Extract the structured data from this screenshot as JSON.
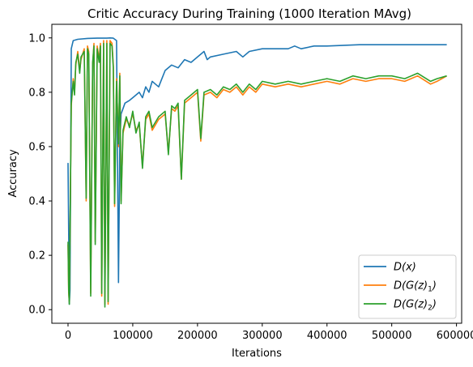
{
  "chart_data": {
    "type": "line",
    "title": "Critic Accuracy During Training (1000 Iteration MAvg)",
    "xlabel": "Iterations",
    "ylabel": "Accuracy",
    "xlim": [
      -25000,
      608000
    ],
    "ylim": [
      -0.05,
      1.05
    ],
    "x_ticks": [
      0,
      100000,
      200000,
      300000,
      400000,
      500000,
      600000
    ],
    "x_tick_labels": [
      "0",
      "100000",
      "200000",
      "300000",
      "400000",
      "500000",
      "600000"
    ],
    "y_ticks": [
      0.0,
      0.2,
      0.4,
      0.6,
      0.8,
      1.0
    ],
    "y_tick_labels": [
      "0.0",
      "0.2",
      "0.4",
      "0.6",
      "0.8",
      "1.0"
    ],
    "grid": false,
    "legend_position": "bottom-right",
    "colors": {
      "dx": "#1f77b4",
      "dgz1": "#ff7f0e",
      "dgz2": "#2ca02c"
    },
    "series": [
      {
        "name": "D(x)",
        "legend_parts": [
          "D(x)"
        ],
        "x": [
          0,
          2000,
          3000,
          5000,
          8000,
          15000,
          30000,
          45000,
          55000,
          60000,
          65000,
          70000,
          75000,
          78000,
          80000,
          82000,
          88000,
          95000,
          100000,
          110000,
          115000,
          120000,
          125000,
          130000,
          135000,
          140000,
          145000,
          150000,
          160000,
          170000,
          180000,
          190000,
          200000,
          210000,
          215000,
          220000,
          240000,
          260000,
          270000,
          280000,
          300000,
          320000,
          340000,
          350000,
          360000,
          380000,
          400000,
          450000,
          500000,
          550000,
          585000
        ],
        "y": [
          0.54,
          0.02,
          0.07,
          0.96,
          0.99,
          0.995,
          0.998,
          0.999,
          0.999,
          0.999,
          1.0,
          0.999,
          0.99,
          0.1,
          0.6,
          0.72,
          0.76,
          0.77,
          0.78,
          0.8,
          0.78,
          0.82,
          0.8,
          0.84,
          0.83,
          0.82,
          0.85,
          0.88,
          0.9,
          0.89,
          0.92,
          0.91,
          0.93,
          0.95,
          0.92,
          0.93,
          0.94,
          0.95,
          0.93,
          0.95,
          0.96,
          0.96,
          0.96,
          0.97,
          0.96,
          0.97,
          0.97,
          0.975,
          0.975,
          0.975,
          0.975
        ]
      },
      {
        "name": "D(G(z)1)",
        "legend_parts": [
          "D(G(z)",
          "1",
          ")"
        ],
        "x": [
          0,
          1000,
          2000,
          5000,
          8000,
          10000,
          12000,
          15000,
          18000,
          20000,
          25000,
          28000,
          30000,
          32000,
          35000,
          38000,
          40000,
          42000,
          45000,
          48000,
          50000,
          52000,
          55000,
          57000,
          60000,
          62000,
          65000,
          68000,
          70000,
          72000,
          75000,
          78000,
          80000,
          82000,
          85000,
          90000,
          95000,
          100000,
          105000,
          110000,
          115000,
          120000,
          125000,
          130000,
          140000,
          150000,
          155000,
          160000,
          165000,
          170000,
          175000,
          180000,
          190000,
          200000,
          205000,
          210000,
          220000,
          230000,
          240000,
          250000,
          260000,
          270000,
          280000,
          290000,
          300000,
          320000,
          340000,
          360000,
          380000,
          400000,
          420000,
          440000,
          460000,
          480000,
          500000,
          520000,
          540000,
          560000,
          570000,
          585000
        ],
        "y": [
          0.24,
          0.06,
          0.03,
          0.75,
          0.85,
          0.8,
          0.9,
          0.95,
          0.88,
          0.92,
          0.96,
          0.4,
          0.97,
          0.95,
          0.06,
          0.9,
          0.98,
          0.25,
          0.97,
          0.92,
          0.98,
          0.05,
          0.99,
          0.02,
          0.99,
          0.02,
          0.99,
          0.98,
          0.9,
          0.38,
          0.85,
          0.6,
          0.87,
          0.4,
          0.65,
          0.7,
          0.68,
          0.72,
          0.66,
          0.68,
          0.53,
          0.7,
          0.72,
          0.66,
          0.7,
          0.72,
          0.58,
          0.74,
          0.73,
          0.75,
          0.48,
          0.76,
          0.78,
          0.8,
          0.62,
          0.79,
          0.8,
          0.78,
          0.81,
          0.8,
          0.82,
          0.79,
          0.82,
          0.8,
          0.83,
          0.82,
          0.83,
          0.82,
          0.83,
          0.84,
          0.83,
          0.85,
          0.84,
          0.85,
          0.85,
          0.84,
          0.86,
          0.83,
          0.84,
          0.86
        ]
      },
      {
        "name": "D(G(z)2)",
        "legend_parts": [
          "D(G(z)",
          "2",
          ")"
        ],
        "x": [
          0,
          1000,
          2000,
          5000,
          8000,
          10000,
          12000,
          15000,
          18000,
          20000,
          25000,
          28000,
          30000,
          32000,
          35000,
          38000,
          40000,
          42000,
          45000,
          48000,
          50000,
          52000,
          55000,
          57000,
          60000,
          62000,
          65000,
          68000,
          70000,
          72000,
          75000,
          78000,
          80000,
          82000,
          85000,
          90000,
          95000,
          100000,
          105000,
          110000,
          115000,
          120000,
          125000,
          130000,
          140000,
          150000,
          155000,
          160000,
          165000,
          170000,
          175000,
          180000,
          190000,
          200000,
          205000,
          210000,
          220000,
          230000,
          240000,
          250000,
          260000,
          270000,
          280000,
          290000,
          300000,
          320000,
          340000,
          360000,
          380000,
          400000,
          420000,
          440000,
          460000,
          480000,
          500000,
          520000,
          540000,
          560000,
          570000,
          585000
        ],
        "y": [
          0.25,
          0.07,
          0.02,
          0.76,
          0.84,
          0.79,
          0.91,
          0.94,
          0.87,
          0.93,
          0.95,
          0.41,
          0.96,
          0.94,
          0.05,
          0.91,
          0.97,
          0.24,
          0.96,
          0.91,
          0.97,
          0.06,
          0.98,
          0.01,
          0.98,
          0.03,
          0.98,
          0.97,
          0.89,
          0.39,
          0.84,
          0.61,
          0.86,
          0.39,
          0.66,
          0.71,
          0.67,
          0.73,
          0.65,
          0.69,
          0.52,
          0.71,
          0.73,
          0.67,
          0.71,
          0.73,
          0.57,
          0.75,
          0.74,
          0.76,
          0.48,
          0.77,
          0.79,
          0.81,
          0.63,
          0.8,
          0.81,
          0.79,
          0.82,
          0.81,
          0.83,
          0.8,
          0.83,
          0.81,
          0.84,
          0.83,
          0.84,
          0.83,
          0.84,
          0.85,
          0.84,
          0.86,
          0.85,
          0.86,
          0.86,
          0.85,
          0.87,
          0.84,
          0.85,
          0.86
        ]
      }
    ]
  }
}
